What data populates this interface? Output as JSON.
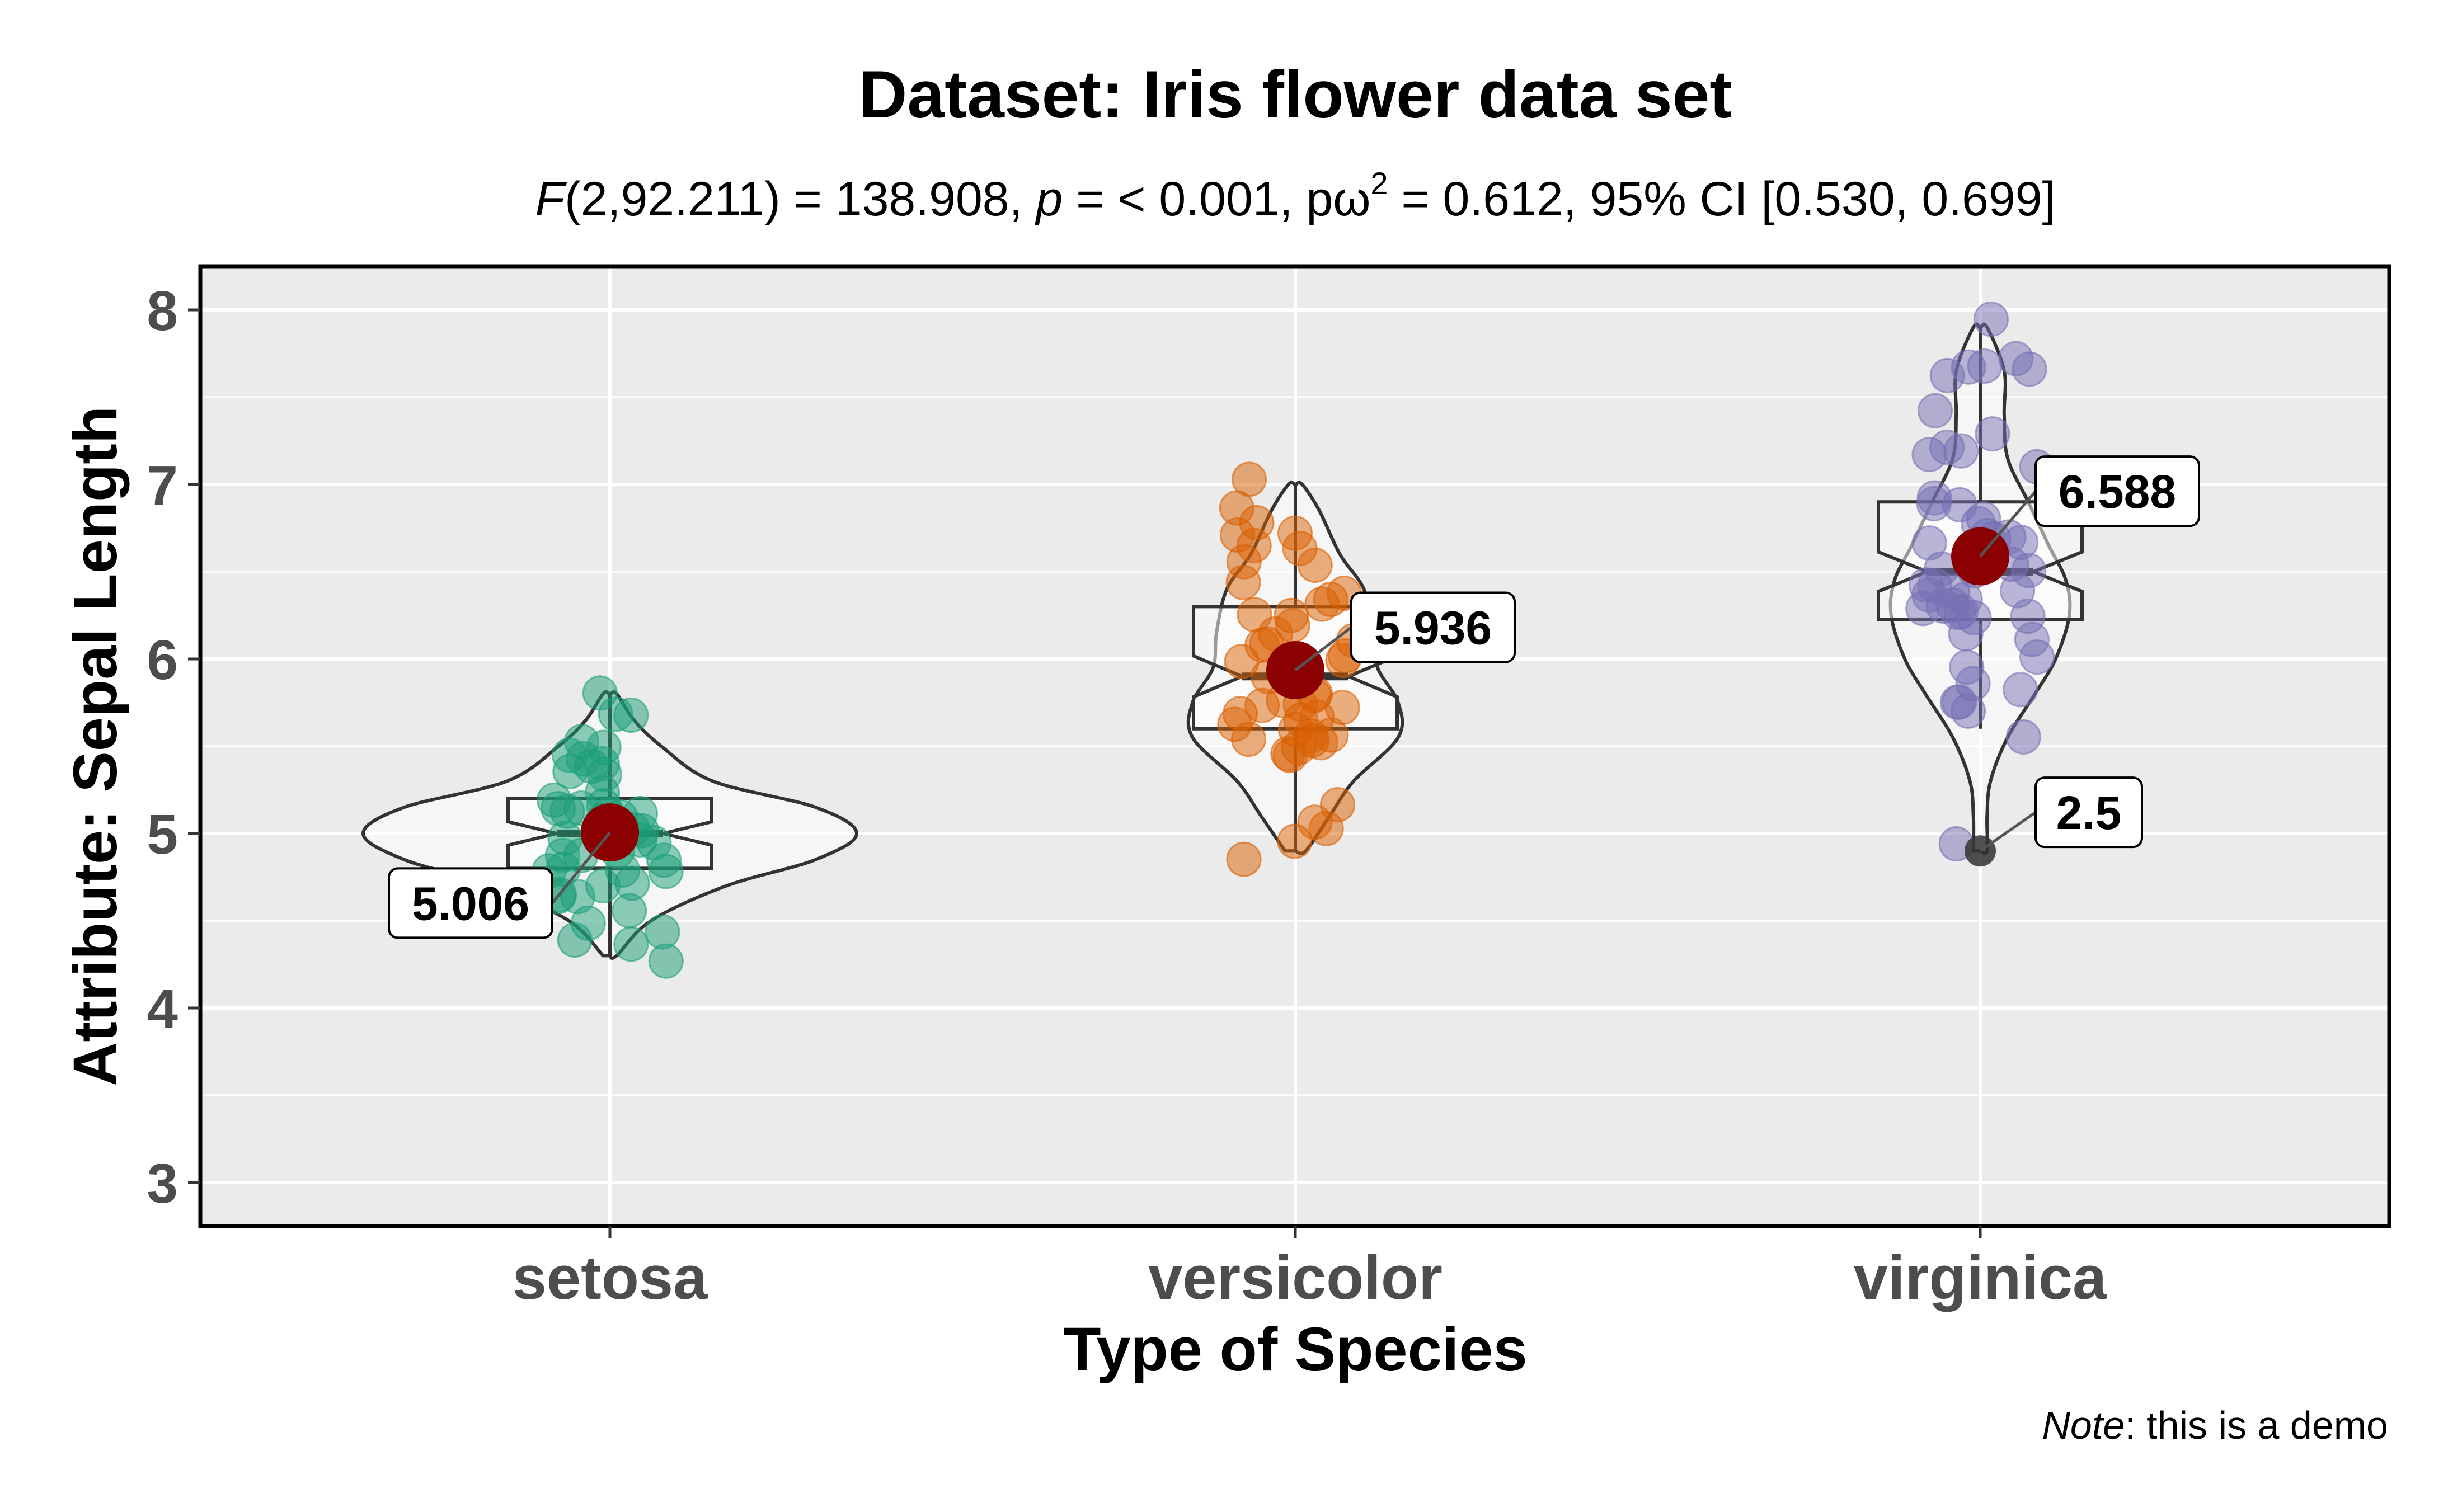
{
  "chart_data": {
    "type": "violin",
    "title": "Dataset: Iris flower data set",
    "subtitle": {
      "stat_symbol": "F",
      "stat_args": "(2,92.211) = 138.908, ",
      "p_symbol": "p",
      "p_rest": " = < 0.001, pω",
      "effect_sup": "2",
      "effect_rest": " = 0.612, 95% CI [0.530, 0.699]"
    },
    "xlabel": "Type of Species",
    "ylabel": "Attribute: Sepal Length",
    "caption": {
      "note": "Note",
      "rest": ": this is a demo"
    },
    "ylim": [
      2.75,
      8.25
    ],
    "yticks": [
      "3",
      "4",
      "5",
      "6",
      "7",
      "8"
    ],
    "categories": [
      "setosa",
      "versicolor",
      "virginica"
    ],
    "colors": {
      "setosa": "#1b9e77",
      "versicolor": "#d95f02",
      "virginica": "#7570b3",
      "mean": "#8b0000",
      "panel": "#ebebeb",
      "grid": "#ffffff"
    },
    "means": [
      5.006,
      5.936,
      6.588
    ],
    "mean_labels": [
      "5.006",
      "5.936",
      "6.588"
    ],
    "outlier_label": "2.5",
    "outlier": {
      "group": "virginica",
      "value": 4.9
    },
    "boxes": [
      {
        "q1": 4.8,
        "median": 5.0,
        "q3": 5.2,
        "min": 4.3,
        "max": 5.8
      },
      {
        "q1": 5.6,
        "median": 5.9,
        "q3": 6.3,
        "min": 4.9,
        "max": 7.0
      },
      {
        "q1": 6.225,
        "median": 6.5,
        "q3": 6.9,
        "min": 5.6,
        "max": 7.9
      }
    ],
    "violins": [
      {
        "y": [
          4.3,
          4.5,
          4.7,
          4.85,
          5.0,
          5.15,
          5.3,
          5.5,
          5.65,
          5.8
        ],
        "w": [
          0.02,
          0.12,
          0.34,
          0.6,
          0.72,
          0.6,
          0.3,
          0.15,
          0.07,
          0.02
        ]
      },
      {
        "y": [
          4.9,
          5.1,
          5.3,
          5.55,
          5.75,
          5.95,
          6.15,
          6.4,
          6.6,
          6.85,
          7.0
        ],
        "w": [
          0.03,
          0.1,
          0.17,
          0.3,
          0.3,
          0.24,
          0.23,
          0.2,
          0.13,
          0.07,
          0.02
        ]
      },
      {
        "y": [
          4.9,
          5.1,
          5.3,
          5.55,
          5.8,
          6.0,
          6.25,
          6.45,
          6.65,
          6.9,
          7.15,
          7.4,
          7.65,
          7.9
        ],
        "w": [
          0.02,
          0.02,
          0.03,
          0.08,
          0.16,
          0.22,
          0.26,
          0.25,
          0.2,
          0.14,
          0.08,
          0.07,
          0.07,
          0.02
        ]
      }
    ],
    "series": [
      {
        "values": [
          5.1,
          4.9,
          4.7,
          4.6,
          5.0,
          5.4,
          4.6,
          5.0,
          4.4,
          4.9,
          5.4,
          4.8,
          4.8,
          4.3,
          5.8,
          5.7,
          5.4,
          5.1,
          5.7,
          5.1,
          5.4,
          5.1,
          4.6,
          5.1,
          4.8,
          5.0,
          5.0,
          5.2,
          5.2,
          4.7,
          4.8,
          5.4,
          5.2,
          5.5,
          4.9,
          5.0,
          5.5,
          4.9,
          4.4,
          5.1,
          5.0,
          4.5,
          4.4,
          5.0,
          5.1,
          4.8,
          5.1,
          4.6,
          5.3,
          5.0
        ]
      },
      {
        "values": [
          7.0,
          6.4,
          6.9,
          5.5,
          6.5,
          5.7,
          6.3,
          4.9,
          6.6,
          5.2,
          5.0,
          5.9,
          6.0,
          6.1,
          5.6,
          6.7,
          5.6,
          5.8,
          6.2,
          5.6,
          5.9,
          6.1,
          6.3,
          6.1,
          6.4,
          6.6,
          6.8,
          6.7,
          6.0,
          5.7,
          5.5,
          5.5,
          5.8,
          6.0,
          5.4,
          6.0,
          6.7,
          6.3,
          5.6,
          5.5,
          5.5,
          6.1,
          5.8,
          5.0,
          5.6,
          5.7,
          5.7,
          6.2,
          5.1,
          5.7
        ]
      },
      {
        "values": [
          6.3,
          5.8,
          7.1,
          6.3,
          6.5,
          7.6,
          4.9,
          7.3,
          6.7,
          7.2,
          6.5,
          6.4,
          6.8,
          5.7,
          5.8,
          6.4,
          6.5,
          7.7,
          7.7,
          6.0,
          6.9,
          5.6,
          7.7,
          6.3,
          6.7,
          7.2,
          6.2,
          6.1,
          6.4,
          7.2,
          7.4,
          7.9,
          6.4,
          6.3,
          6.1,
          7.7,
          6.3,
          6.4,
          6.0,
          6.9,
          6.7,
          6.9,
          5.8,
          6.8,
          6.7,
          6.7,
          6.3,
          6.5,
          6.2,
          5.9
        ]
      }
    ]
  }
}
